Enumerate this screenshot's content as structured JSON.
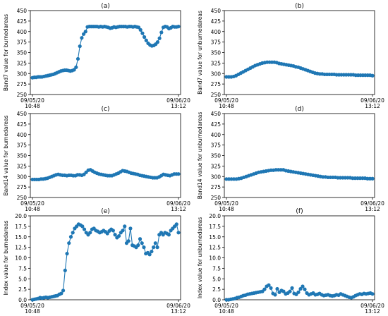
{
  "chart_data": [
    {
      "type": "scatter",
      "title": "(a)",
      "ylabel": "Band7 value for burnedareas",
      "xlabel": "",
      "x_ticks": [
        [
          "09/05/20",
          "10:48"
        ],
        [
          "09/06/20",
          "13:12"
        ]
      ],
      "ylim": [
        250,
        450
      ],
      "yticks": [
        250,
        275,
        300,
        325,
        350,
        375,
        400,
        425,
        450
      ],
      "grid": false,
      "color": "#1f77b4",
      "series": [
        {
          "values": [
            290,
            291,
            291,
            292,
            292,
            292,
            293,
            294,
            295,
            296,
            297,
            298,
            300,
            302,
            304,
            306,
            307,
            308,
            308,
            307,
            306,
            307,
            309,
            315,
            335,
            365,
            385,
            394,
            400,
            411,
            412,
            412,
            412,
            412,
            412,
            411,
            412,
            411,
            412,
            411,
            410,
            408,
            409,
            411,
            410,
            411,
            412,
            412,
            412,
            412,
            411,
            412,
            412,
            411,
            412,
            411,
            410,
            404,
            396,
            387,
            379,
            372,
            368,
            366,
            367,
            370,
            375,
            384,
            398,
            410,
            412,
            411,
            407,
            409,
            412,
            411,
            411,
            412
          ]
        }
      ]
    },
    {
      "type": "scatter",
      "title": "(b)",
      "ylabel": "Band7 value for unburnedareas",
      "xlabel": "",
      "x_ticks": [
        [
          "09/05/20",
          "10:48"
        ],
        [
          "09/06/20",
          "13:12"
        ]
      ],
      "ylim": [
        250,
        450
      ],
      "yticks": [
        250,
        275,
        300,
        325,
        350,
        375,
        400,
        425,
        450
      ],
      "grid": false,
      "color": "#1f77b4",
      "series": [
        {
          "values": [
            292,
            292,
            292,
            293,
            295,
            298,
            301,
            304,
            307,
            310,
            313,
            316,
            319,
            321,
            323,
            325,
            326,
            327,
            327,
            327,
            327,
            326,
            324,
            323,
            322,
            321,
            320,
            319,
            318,
            316,
            315,
            313,
            311,
            309,
            307,
            305,
            303,
            301,
            300,
            299,
            299,
            298,
            298,
            298,
            298,
            298,
            297,
            297,
            297,
            297,
            297,
            297,
            297,
            297,
            296,
            296,
            296,
            296,
            296,
            296,
            296,
            295
          ]
        }
      ]
    },
    {
      "type": "scatter",
      "title": "(c)",
      "ylabel": "Band14 value for burnedareas",
      "xlabel": "",
      "x_ticks": [
        [
          "09/05/20",
          "10:48"
        ],
        [
          "09/06/20",
          "13:12"
        ]
      ],
      "ylim": [
        250,
        450
      ],
      "yticks": [
        250,
        275,
        300,
        325,
        350,
        375,
        400,
        425,
        450
      ],
      "grid": false,
      "color": "#1f77b4",
      "series": [
        {
          "values": [
            293,
            293,
            293,
            293,
            294,
            294,
            295,
            296,
            298,
            300,
            302,
            304,
            305,
            304,
            303,
            303,
            302,
            303,
            303,
            302,
            302,
            304,
            304,
            303,
            305,
            310,
            315,
            316,
            313,
            310,
            308,
            306,
            305,
            304,
            303,
            302,
            302,
            302,
            304,
            306,
            308,
            311,
            314,
            313,
            312,
            310,
            308,
            307,
            306,
            305,
            303,
            302,
            301,
            300,
            299,
            298,
            297,
            297,
            297,
            299,
            302,
            305,
            304,
            303,
            302,
            304,
            306,
            306,
            306
          ]
        }
      ]
    },
    {
      "type": "scatter",
      "title": "(d)",
      "ylabel": "Band14 value for unburnedareas",
      "xlabel": "",
      "x_ticks": [
        [
          "09/05/20",
          "10:48"
        ],
        [
          "09/06/20",
          "13:12"
        ]
      ],
      "ylim": [
        250,
        450
      ],
      "yticks": [
        250,
        275,
        300,
        325,
        350,
        375,
        400,
        425,
        450
      ],
      "grid": false,
      "color": "#1f77b4",
      "series": [
        {
          "values": [
            294,
            294,
            294,
            294,
            294,
            295,
            296,
            298,
            300,
            302,
            304,
            306,
            308,
            310,
            311,
            312,
            313,
            314,
            315,
            315,
            316,
            316,
            316,
            316,
            314,
            313,
            312,
            311,
            310,
            309,
            308,
            307,
            306,
            305,
            304,
            303,
            302,
            301,
            300,
            299,
            299,
            298,
            298,
            298,
            298,
            297,
            297,
            297,
            297,
            297,
            297,
            296,
            296,
            296,
            296,
            296,
            296,
            295,
            295,
            295
          ]
        }
      ]
    },
    {
      "type": "scatter",
      "title": "(e)",
      "ylabel": "Index value for burnedareas",
      "xlabel": "",
      "x_ticks": [
        [
          "09/05/20",
          "10:48"
        ],
        [
          "09/06/20",
          "13:12"
        ]
      ],
      "ylim": [
        0,
        20
      ],
      "yticks": [
        0.0,
        2.5,
        5.0,
        7.5,
        10.0,
        12.5,
        15.0,
        17.5,
        20.0
      ],
      "grid": false,
      "color": "#1f77b4",
      "series": [
        {
          "values": [
            0.0,
            0.1,
            0.2,
            0.3,
            0.5,
            0.4,
            0.5,
            0.6,
            0.5,
            0.6,
            0.7,
            0.8,
            0.9,
            1.0,
            1.3,
            1.5,
            2.2,
            7.0,
            11.0,
            13.5,
            15.0,
            16.0,
            17.0,
            17.5,
            18.0,
            17.8,
            17.5,
            16.8,
            16.0,
            15.5,
            16.0,
            16.8,
            17.0,
            16.5,
            16.3,
            16.0,
            16.2,
            16.5,
            16.2,
            15.8,
            16.4,
            16.8,
            16.5,
            15.5,
            14.8,
            15.2,
            16.0,
            16.5,
            17.5,
            13.5,
            14.0,
            17.0,
            13.0,
            12.8,
            12.5,
            13.0,
            14.5,
            13.5,
            12.5,
            11.0,
            11.2,
            10.8,
            11.5,
            12.5,
            13.5,
            12.5,
            15.5,
            16.0,
            15.5,
            16.0,
            15.8,
            15.5,
            16.5,
            17.0,
            17.5,
            18.0,
            16.0
          ]
        }
      ]
    },
    {
      "type": "scatter",
      "title": "(f)",
      "ylabel": "Index value for unburnedareas",
      "xlabel": "",
      "x_ticks": [
        [
          "09/05/20",
          "10:48"
        ],
        [
          "09/06/20",
          "13:12"
        ]
      ],
      "ylim": [
        0,
        20
      ],
      "yticks": [
        0.0,
        2.5,
        5.0,
        7.5,
        10.0,
        12.5,
        15.0,
        17.5,
        20.0
      ],
      "grid": false,
      "color": "#1f77b4",
      "series": [
        {
          "values": [
            0.0,
            0.0,
            0.1,
            0.2,
            0.3,
            0.5,
            0.6,
            0.8,
            1.0,
            1.1,
            1.3,
            1.4,
            1.5,
            1.6,
            1.7,
            1.8,
            1.9,
            2.0,
            2.5,
            3.2,
            3.5,
            2.8,
            1.5,
            1.2,
            2.6,
            1.8,
            2.2,
            2.0,
            1.4,
            1.6,
            2.0,
            2.8,
            1.5,
            1.3,
            1.8,
            2.6,
            3.2,
            2.5,
            1.6,
            1.2,
            1.4,
            1.6,
            1.2,
            1.3,
            1.5,
            1.2,
            1.0,
            1.1,
            1.2,
            1.0,
            0.9,
            1.0,
            1.2,
            1.1,
            1.4,
            1.2,
            1.0,
            0.8,
            0.6,
            0.5,
            0.7,
            1.0,
            1.2,
            1.4,
            1.3,
            1.5,
            1.4,
            1.5,
            1.6,
            1.4
          ]
        }
      ]
    }
  ]
}
